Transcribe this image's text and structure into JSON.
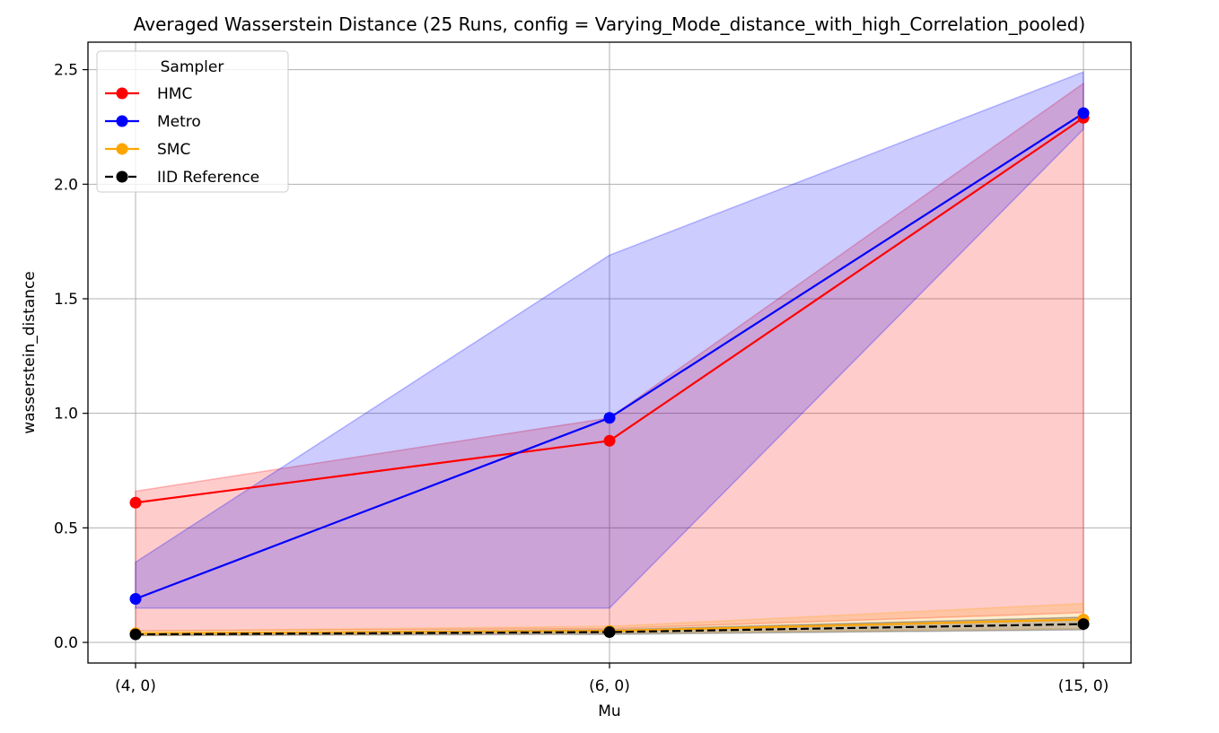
{
  "chart_data": {
    "type": "line",
    "title": "Averaged Wasserstein Distance (25 Runs, config = Varying_Mode_distance_with_high_Correlation_pooled)",
    "xlabel": "Mu",
    "ylabel": "wasserstein_distance",
    "categories": [
      "(4, 0)",
      "(6, 0)",
      "(15, 0)"
    ],
    "yticks": [
      "0.0",
      "0.5",
      "1.0",
      "1.5",
      "2.0",
      "2.5"
    ],
    "ylim": [
      -0.09,
      2.62
    ],
    "grid": true,
    "legend": {
      "title": "Sampler",
      "position": "top-left"
    },
    "series": [
      {
        "name": "HMC",
        "color": "#ff0000",
        "values": [
          0.61,
          0.88,
          2.29
        ],
        "band_low": [
          0.05,
          0.06,
          0.13
        ],
        "band_high": [
          0.66,
          0.98,
          2.44
        ],
        "dashed": false
      },
      {
        "name": "Metro",
        "color": "#0000ff",
        "values": [
          0.19,
          0.98,
          2.31
        ],
        "band_low": [
          0.15,
          0.15,
          2.24
        ],
        "band_high": [
          0.35,
          1.69,
          2.49
        ],
        "dashed": false
      },
      {
        "name": "SMC",
        "color": "#ffa500",
        "values": [
          0.04,
          0.05,
          0.1
        ],
        "band_low": [
          0.03,
          0.04,
          0.06
        ],
        "band_high": [
          0.05,
          0.07,
          0.17
        ],
        "dashed": false
      },
      {
        "name": "IID Reference",
        "color": "#000000",
        "values": [
          0.035,
          0.045,
          0.08
        ],
        "band_low": [
          0.03,
          0.035,
          0.055
        ],
        "band_high": [
          0.04,
          0.055,
          0.11
        ],
        "dashed": true
      }
    ]
  }
}
